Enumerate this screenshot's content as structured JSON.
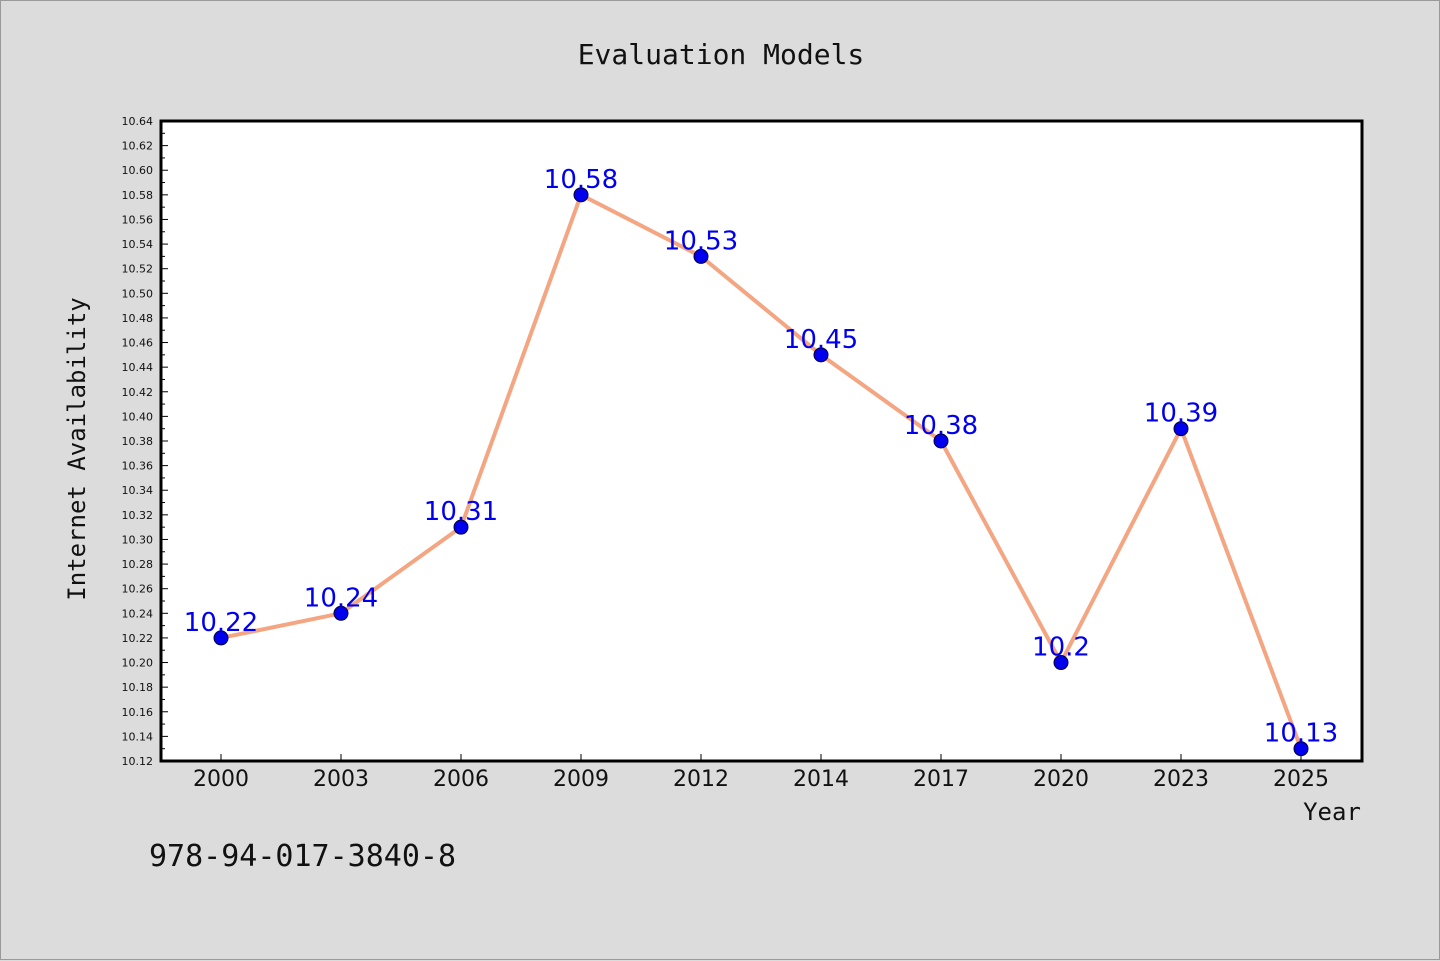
{
  "chart_data": {
    "type": "line",
    "title": "Evaluation Models",
    "xlabel": "Year",
    "ylabel": "Internet Availability",
    "categories": [
      "2000",
      "2003",
      "2006",
      "2009",
      "2012",
      "2014",
      "2017",
      "2020",
      "2023",
      "2025"
    ],
    "values": [
      10.22,
      10.24,
      10.31,
      10.58,
      10.53,
      10.45,
      10.38,
      10.2,
      10.39,
      10.13
    ],
    "data_labels": [
      "10.22",
      "10.24",
      "10.31",
      "10.58",
      "10.53",
      "10.45",
      "10.38",
      "10.2",
      "10.39",
      "10.13"
    ],
    "ylim": [
      10.12,
      10.64
    ],
    "yticks": [
      "10.12",
      "10.14",
      "10.16",
      "10.18",
      "10.20",
      "10.22",
      "10.24",
      "10.26",
      "10.28",
      "10.30",
      "10.32",
      "10.34",
      "10.36",
      "10.38",
      "10.40",
      "10.42",
      "10.44",
      "10.46",
      "10.48",
      "10.50",
      "10.52",
      "10.54",
      "10.56",
      "10.58",
      "10.60",
      "10.62",
      "10.64"
    ],
    "grid": false,
    "line_color": "#f4a582",
    "marker_color": "#0000ee",
    "label_color": "#0000ee",
    "background": "#dcdcdc"
  },
  "footnote": "978-94-017-3840-8"
}
